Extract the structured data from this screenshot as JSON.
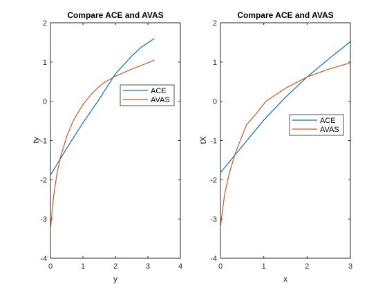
{
  "chart_data": [
    {
      "type": "line",
      "title": "Compare ACE and AVAS",
      "xlabel": "y",
      "ylabel": "ty",
      "xlim": [
        0,
        4
      ],
      "ylim": [
        -4,
        2
      ],
      "xticks": [
        "0",
        "1",
        "2",
        "3",
        "4"
      ],
      "yticks": [
        "-4",
        "-3",
        "-2",
        "-1",
        "0",
        "1",
        "2"
      ],
      "grid": false,
      "legend_position": "right-middle",
      "series": [
        {
          "name": "ACE",
          "color": "#0072BD",
          "x": [
            0.0,
            0.5,
            1.0,
            1.5,
            2.0,
            2.5,
            2.8,
            3.2
          ],
          "y": [
            -1.88,
            -1.2,
            -0.55,
            0.05,
            0.7,
            1.15,
            1.38,
            1.6
          ]
        },
        {
          "name": "AVAS",
          "color": "#D95319",
          "x": [
            0.0,
            0.05,
            0.1,
            0.2,
            0.3,
            0.5,
            0.7,
            1.0,
            1.3,
            1.6,
            2.0,
            2.5,
            3.0,
            3.2
          ],
          "y": [
            -3.3,
            -2.8,
            -2.4,
            -1.85,
            -1.45,
            -0.9,
            -0.5,
            -0.08,
            0.22,
            0.45,
            0.64,
            0.82,
            0.98,
            1.05
          ]
        }
      ]
    },
    {
      "type": "line",
      "title": "Compare ACE and AVAS",
      "xlabel": "x",
      "ylabel": "tX",
      "xlim": [
        0,
        3
      ],
      "ylim": [
        -4,
        2
      ],
      "xticks": [
        "0",
        "1",
        "2",
        "3"
      ],
      "yticks": [
        "-4",
        "-3",
        "-2",
        "-1",
        "0",
        "1",
        "2"
      ],
      "grid": false,
      "legend_position": "right-middle",
      "series": [
        {
          "name": "ACE",
          "color": "#0072BD",
          "x": [
            0.0,
            0.5,
            1.0,
            1.5,
            2.0,
            2.5,
            3.0
          ],
          "y": [
            -1.82,
            -1.15,
            -0.48,
            0.1,
            0.62,
            1.08,
            1.52
          ]
        },
        {
          "name": "AVAS",
          "color": "#D95319",
          "x": [
            0.0,
            0.05,
            0.1,
            0.2,
            0.35,
            0.6,
            0.8,
            1.05,
            1.5,
            2.0,
            2.5,
            3.0
          ],
          "y": [
            -3.22,
            -2.75,
            -2.35,
            -1.85,
            -1.3,
            -0.6,
            -0.35,
            0.0,
            0.33,
            0.62,
            0.82,
            0.98
          ]
        }
      ]
    }
  ]
}
